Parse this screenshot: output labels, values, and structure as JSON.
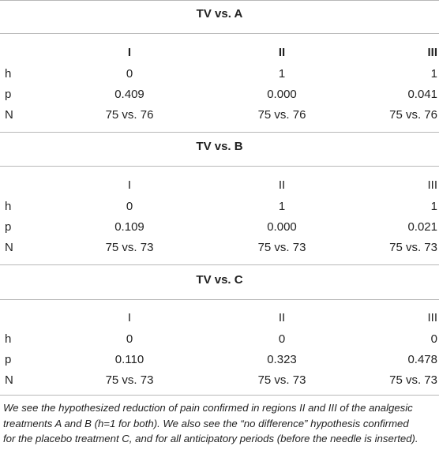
{
  "blocks": [
    {
      "title": "TV vs. A",
      "columns": [
        "I",
        "II",
        "III"
      ],
      "columns_bold": true,
      "rows": [
        {
          "label": "h",
          "values": [
            "0",
            "1",
            "1"
          ]
        },
        {
          "label": "p",
          "values": [
            "0.409",
            "0.000",
            "0.041"
          ]
        },
        {
          "label": "N",
          "values": [
            "75 vs. 76",
            "75 vs. 76",
            "75 vs. 76"
          ]
        }
      ]
    },
    {
      "title": "TV vs. B",
      "columns": [
        "I",
        "II",
        "III"
      ],
      "columns_bold": false,
      "rows": [
        {
          "label": "h",
          "values": [
            "0",
            "1",
            "1"
          ]
        },
        {
          "label": "p",
          "values": [
            "0.109",
            "0.000",
            "0.021"
          ]
        },
        {
          "label": "N",
          "values": [
            "75 vs. 73",
            "75 vs. 73",
            "75 vs. 73"
          ]
        }
      ]
    },
    {
      "title": "TV vs. C",
      "columns": [
        "I",
        "II",
        "III"
      ],
      "columns_bold": false,
      "rows": [
        {
          "label": "h",
          "values": [
            "0",
            "0",
            "0"
          ]
        },
        {
          "label": "p",
          "values": [
            "0.110",
            "0.323",
            "0.478"
          ]
        },
        {
          "label": "N",
          "values": [
            "75 vs. 73",
            "75 vs. 73",
            "75 vs. 73"
          ]
        }
      ]
    }
  ],
  "footnote": {
    "line1": "We see the hypothesized reduction of pain confirmed in regions II and III of the analgesic",
    "line2": "treatments A and B (h=1 for both). We also see the “no difference” hypothesis confirmed",
    "line3": "for the placebo treatment C, and for all anticipatory periods (before the needle is inserted)."
  }
}
